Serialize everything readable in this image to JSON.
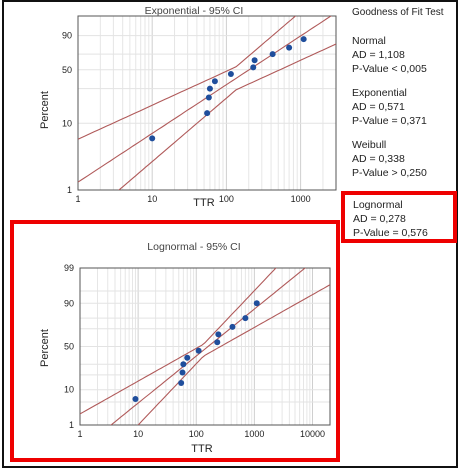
{
  "charts": [
    {
      "title": "Exponential - 95% CI",
      "ylabel": "Percent",
      "xlabel": "TTR",
      "xticks": [
        "1",
        "10",
        "100",
        "1000"
      ],
      "yticks": [
        "90",
        "50",
        "10",
        "1"
      ]
    },
    {
      "title": "Lognormal - 95% CI",
      "ylabel": "Percent",
      "xlabel": "TTR",
      "xticks": [
        "1",
        "10",
        "100",
        "1000",
        "10000"
      ],
      "yticks": [
        "99",
        "90",
        "50",
        "10",
        "1"
      ]
    }
  ],
  "goodness_of_fit": {
    "heading": "Goodness of Fit Test",
    "groups": [
      {
        "name": "Normal",
        "ad": "AD = 1,108",
        "p": "P-Value < 0,005"
      },
      {
        "name": "Exponential",
        "ad": "AD = 0,571",
        "p": "P-Value = 0,371"
      },
      {
        "name": "Weibull",
        "ad": "AD = 0,338",
        "p": "P-Value > 0,250"
      },
      {
        "name": "Lognormal",
        "ad": "AD = 0,278",
        "p": "P-Value = 0,576"
      }
    ]
  },
  "chart_data": [
    {
      "type": "scatter",
      "title": "Exponential - 95% CI",
      "xlabel": "TTR",
      "ylabel": "Percent",
      "x_scale": "log",
      "xlim": [
        1,
        3000
      ],
      "ylim": [
        1,
        99
      ],
      "x": [
        10,
        55,
        58,
        60,
        70,
        115,
        230,
        240,
        420,
        700,
        1100
      ],
      "y": [
        6,
        14,
        23,
        30,
        37,
        45,
        53,
        62,
        70,
        78,
        87
      ]
    },
    {
      "type": "scatter",
      "title": "Lognormal - 95% CI",
      "xlabel": "TTR",
      "ylabel": "Percent",
      "x_scale": "log",
      "y_scale": "normal-probability",
      "xlim": [
        1,
        20000
      ],
      "ylim": [
        1,
        99
      ],
      "x": [
        9,
        55,
        58,
        60,
        70,
        110,
        230,
        240,
        420,
        700,
        1100
      ],
      "y": [
        6,
        14,
        22,
        30,
        37,
        45,
        55,
        64,
        72,
        80,
        90
      ]
    }
  ],
  "colors": {
    "point": "#1f4e9c",
    "fit_line": "#b05a5a",
    "highlight": "#e00000",
    "grid": "#d8d8d8"
  }
}
